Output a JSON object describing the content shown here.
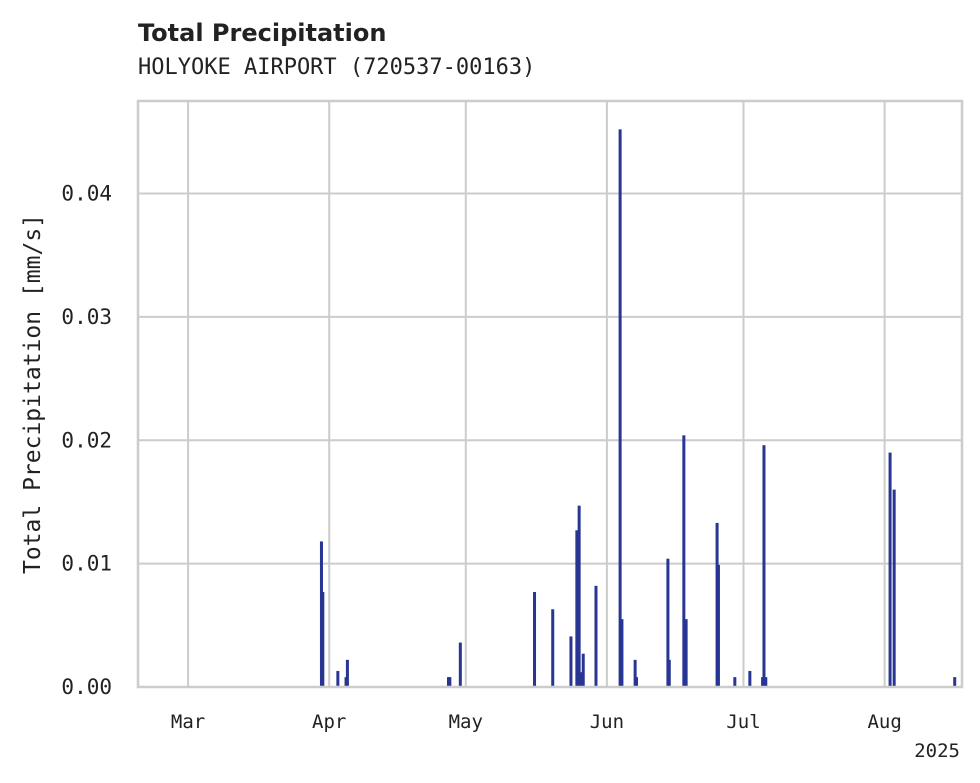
{
  "chart_data": {
    "type": "bar",
    "title": "Total Precipitation",
    "subtitle": "HOLYOKE AIRPORT (720537-00163)",
    "xlabel": "",
    "ylabel": "Total Precipitation [mm/s]",
    "xlim_day_of_year": [
      49,
      230
    ],
    "ylim": [
      0,
      0.0475
    ],
    "x_ticks": [
      {
        "label": "Mar",
        "day": 60
      },
      {
        "label": "Apr",
        "day": 91
      },
      {
        "label": "May",
        "day": 121
      },
      {
        "label": "Jun",
        "day": 152
      },
      {
        "label": "Jul",
        "day": 182
      },
      {
        "label": "Aug",
        "day": 213
      }
    ],
    "x_offset_label": "2025",
    "y_ticks": [
      {
        "label": "0.00",
        "value": 0.0
      },
      {
        "label": "0.01",
        "value": 0.01
      },
      {
        "label": "0.02",
        "value": 0.02
      },
      {
        "label": "0.03",
        "value": 0.03
      },
      {
        "label": "0.04",
        "value": 0.04
      }
    ],
    "grid": true,
    "series": [
      {
        "name": "Total Precipitation",
        "color": "#283593",
        "points": [
          {
            "day": 89.3,
            "value": 0.0118
          },
          {
            "day": 89.6,
            "value": 0.0077
          },
          {
            "day": 92.9,
            "value": 0.0013
          },
          {
            "day": 94.7,
            "value": 0.0008
          },
          {
            "day": 95.0,
            "value": 0.0022
          },
          {
            "day": 117.2,
            "value": 0.0008
          },
          {
            "day": 117.5,
            "value": 0.0008
          },
          {
            "day": 119.8,
            "value": 0.0036
          },
          {
            "day": 136.1,
            "value": 0.0077
          },
          {
            "day": 140.1,
            "value": 0.0063
          },
          {
            "day": 144.1,
            "value": 0.0041
          },
          {
            "day": 145.4,
            "value": 0.0127
          },
          {
            "day": 145.9,
            "value": 0.0147
          },
          {
            "day": 146.3,
            "value": 0.0012
          },
          {
            "day": 146.8,
            "value": 0.0027
          },
          {
            "day": 149.6,
            "value": 0.0082
          },
          {
            "day": 154.9,
            "value": 0.0452
          },
          {
            "day": 155.3,
            "value": 0.0055
          },
          {
            "day": 158.2,
            "value": 0.0022
          },
          {
            "day": 158.5,
            "value": 0.0008
          },
          {
            "day": 165.4,
            "value": 0.0104
          },
          {
            "day": 165.7,
            "value": 0.0022
          },
          {
            "day": 168.9,
            "value": 0.0204
          },
          {
            "day": 169.4,
            "value": 0.0055
          },
          {
            "day": 176.2,
            "value": 0.0133
          },
          {
            "day": 176.5,
            "value": 0.0099
          },
          {
            "day": 180.1,
            "value": 0.0008
          },
          {
            "day": 183.4,
            "value": 0.0013
          },
          {
            "day": 186.2,
            "value": 0.0008
          },
          {
            "day": 186.5,
            "value": 0.0196
          },
          {
            "day": 186.9,
            "value": 0.0008
          },
          {
            "day": 214.2,
            "value": 0.019
          },
          {
            "day": 215.1,
            "value": 0.016
          },
          {
            "day": 228.4,
            "value": 0.0008
          }
        ]
      }
    ]
  }
}
